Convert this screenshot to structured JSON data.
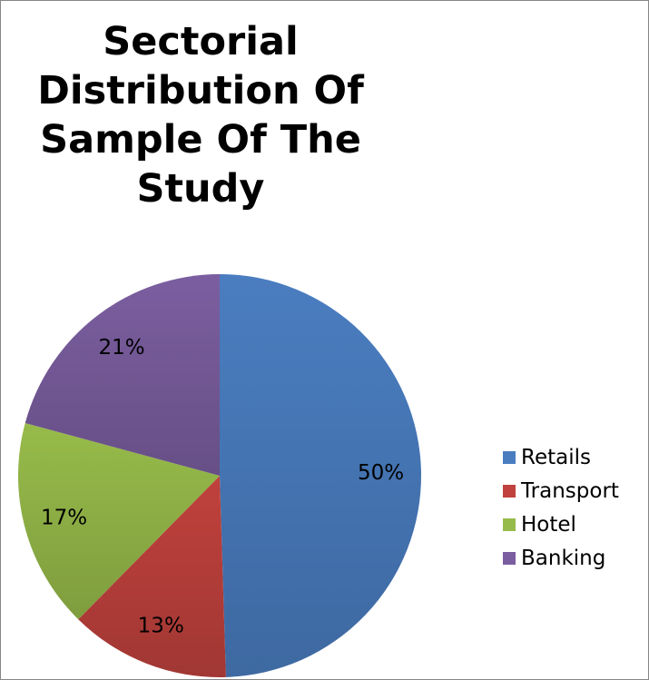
{
  "chart_data": {
    "type": "pie",
    "title": "Sectorial Distribution Of Sample Of  The Study",
    "categories": [
      "Retails",
      "Transport",
      "Hotel",
      "Banking"
    ],
    "values": [
      50,
      13,
      17,
      21
    ],
    "data_labels": [
      "50%",
      "13%",
      "17%",
      "21%"
    ],
    "colors": [
      "#4a7dc0",
      "#c0413d",
      "#97bb4a",
      "#7b5ea0"
    ],
    "legend_position": "right"
  }
}
